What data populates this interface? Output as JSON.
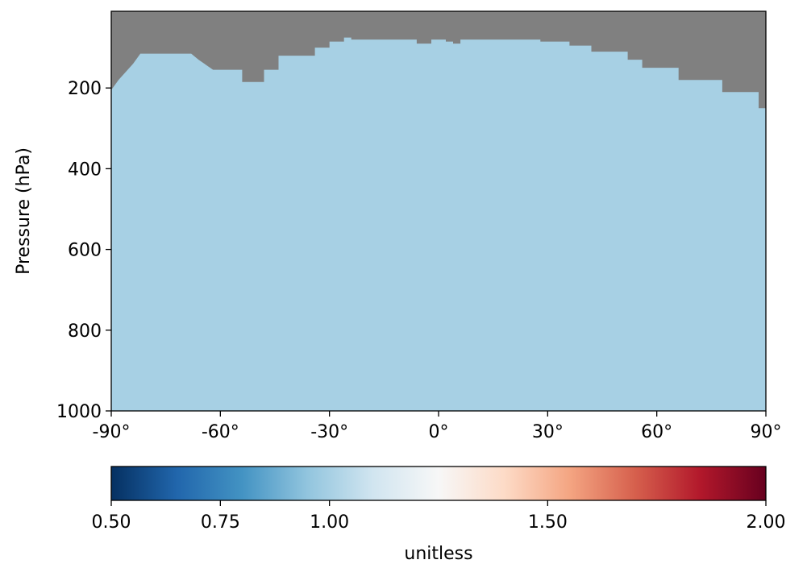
{
  "chart_data": {
    "type": "heatmap",
    "title": "",
    "xlabel": "",
    "ylabel": "Pressure (hPa)",
    "xlim": [
      -90,
      90
    ],
    "ylim": [
      1000,
      10
    ],
    "y_inverted": true,
    "x_ticks": [
      {
        "value": -90,
        "label": "-90°"
      },
      {
        "value": -60,
        "label": "-60°"
      },
      {
        "value": -30,
        "label": "-30°"
      },
      {
        "value": 0,
        "label": "0°"
      },
      {
        "value": 30,
        "label": "30°"
      },
      {
        "value": 60,
        "label": "60°"
      },
      {
        "value": 90,
        "label": "90°"
      }
    ],
    "y_ticks": [
      {
        "value": 200,
        "label": "200"
      },
      {
        "value": 400,
        "label": "400"
      },
      {
        "value": 600,
        "label": "600"
      },
      {
        "value": 800,
        "label": "800"
      },
      {
        "value": 1000,
        "label": "1000"
      }
    ],
    "field_value": 1.0,
    "masked_color": "#808080",
    "masked_region_top_boundary_hPa": [
      {
        "lat": -90,
        "p": 205
      },
      {
        "lat": -88,
        "p": 180
      },
      {
        "lat": -86,
        "p": 160
      },
      {
        "lat": -84,
        "p": 140
      },
      {
        "lat": -82,
        "p": 115
      },
      {
        "lat": -68,
        "p": 115
      },
      {
        "lat": -66,
        "p": 130
      },
      {
        "lat": -62,
        "p": 155
      },
      {
        "lat": -54,
        "p": 155
      },
      {
        "lat": -54,
        "p": 185
      },
      {
        "lat": -48,
        "p": 185
      },
      {
        "lat": -48,
        "p": 155
      },
      {
        "lat": -44,
        "p": 155
      },
      {
        "lat": -44,
        "p": 120
      },
      {
        "lat": -34,
        "p": 120
      },
      {
        "lat": -34,
        "p": 100
      },
      {
        "lat": -30,
        "p": 100
      },
      {
        "lat": -30,
        "p": 85
      },
      {
        "lat": -26,
        "p": 85
      },
      {
        "lat": -26,
        "p": 75
      },
      {
        "lat": -24,
        "p": 75
      },
      {
        "lat": -24,
        "p": 80
      },
      {
        "lat": -6,
        "p": 80
      },
      {
        "lat": -6,
        "p": 90
      },
      {
        "lat": -2,
        "p": 90
      },
      {
        "lat": -2,
        "p": 80
      },
      {
        "lat": 2,
        "p": 80
      },
      {
        "lat": 2,
        "p": 85
      },
      {
        "lat": 4,
        "p": 85
      },
      {
        "lat": 4,
        "p": 90
      },
      {
        "lat": 6,
        "p": 90
      },
      {
        "lat": 6,
        "p": 80
      },
      {
        "lat": 28,
        "p": 80
      },
      {
        "lat": 28,
        "p": 85
      },
      {
        "lat": 36,
        "p": 85
      },
      {
        "lat": 36,
        "p": 95
      },
      {
        "lat": 42,
        "p": 95
      },
      {
        "lat": 42,
        "p": 110
      },
      {
        "lat": 52,
        "p": 110
      },
      {
        "lat": 52,
        "p": 130
      },
      {
        "lat": 56,
        "p": 130
      },
      {
        "lat": 56,
        "p": 150
      },
      {
        "lat": 66,
        "p": 150
      },
      {
        "lat": 66,
        "p": 180
      },
      {
        "lat": 78,
        "p": 180
      },
      {
        "lat": 78,
        "p": 210
      },
      {
        "lat": 88,
        "p": 210
      },
      {
        "lat": 88,
        "p": 250
      },
      {
        "lat": 90,
        "p": 250
      }
    ],
    "colorbar": {
      "label": "unitless",
      "vmin": 0.5,
      "vmax": 2.0,
      "ticks": [
        {
          "value": 0.5,
          "label": "0.50"
        },
        {
          "value": 0.75,
          "label": "0.75"
        },
        {
          "value": 1.0,
          "label": "1.00"
        },
        {
          "value": 1.5,
          "label": "1.50"
        },
        {
          "value": 2.0,
          "label": "2.00"
        }
      ],
      "colors": [
        "#053061",
        "#2166ac",
        "#4393c3",
        "#92c5de",
        "#d1e5f0",
        "#f7f7f7",
        "#fddbc7",
        "#f4a582",
        "#d6604d",
        "#b2182b",
        "#67001f"
      ]
    }
  }
}
